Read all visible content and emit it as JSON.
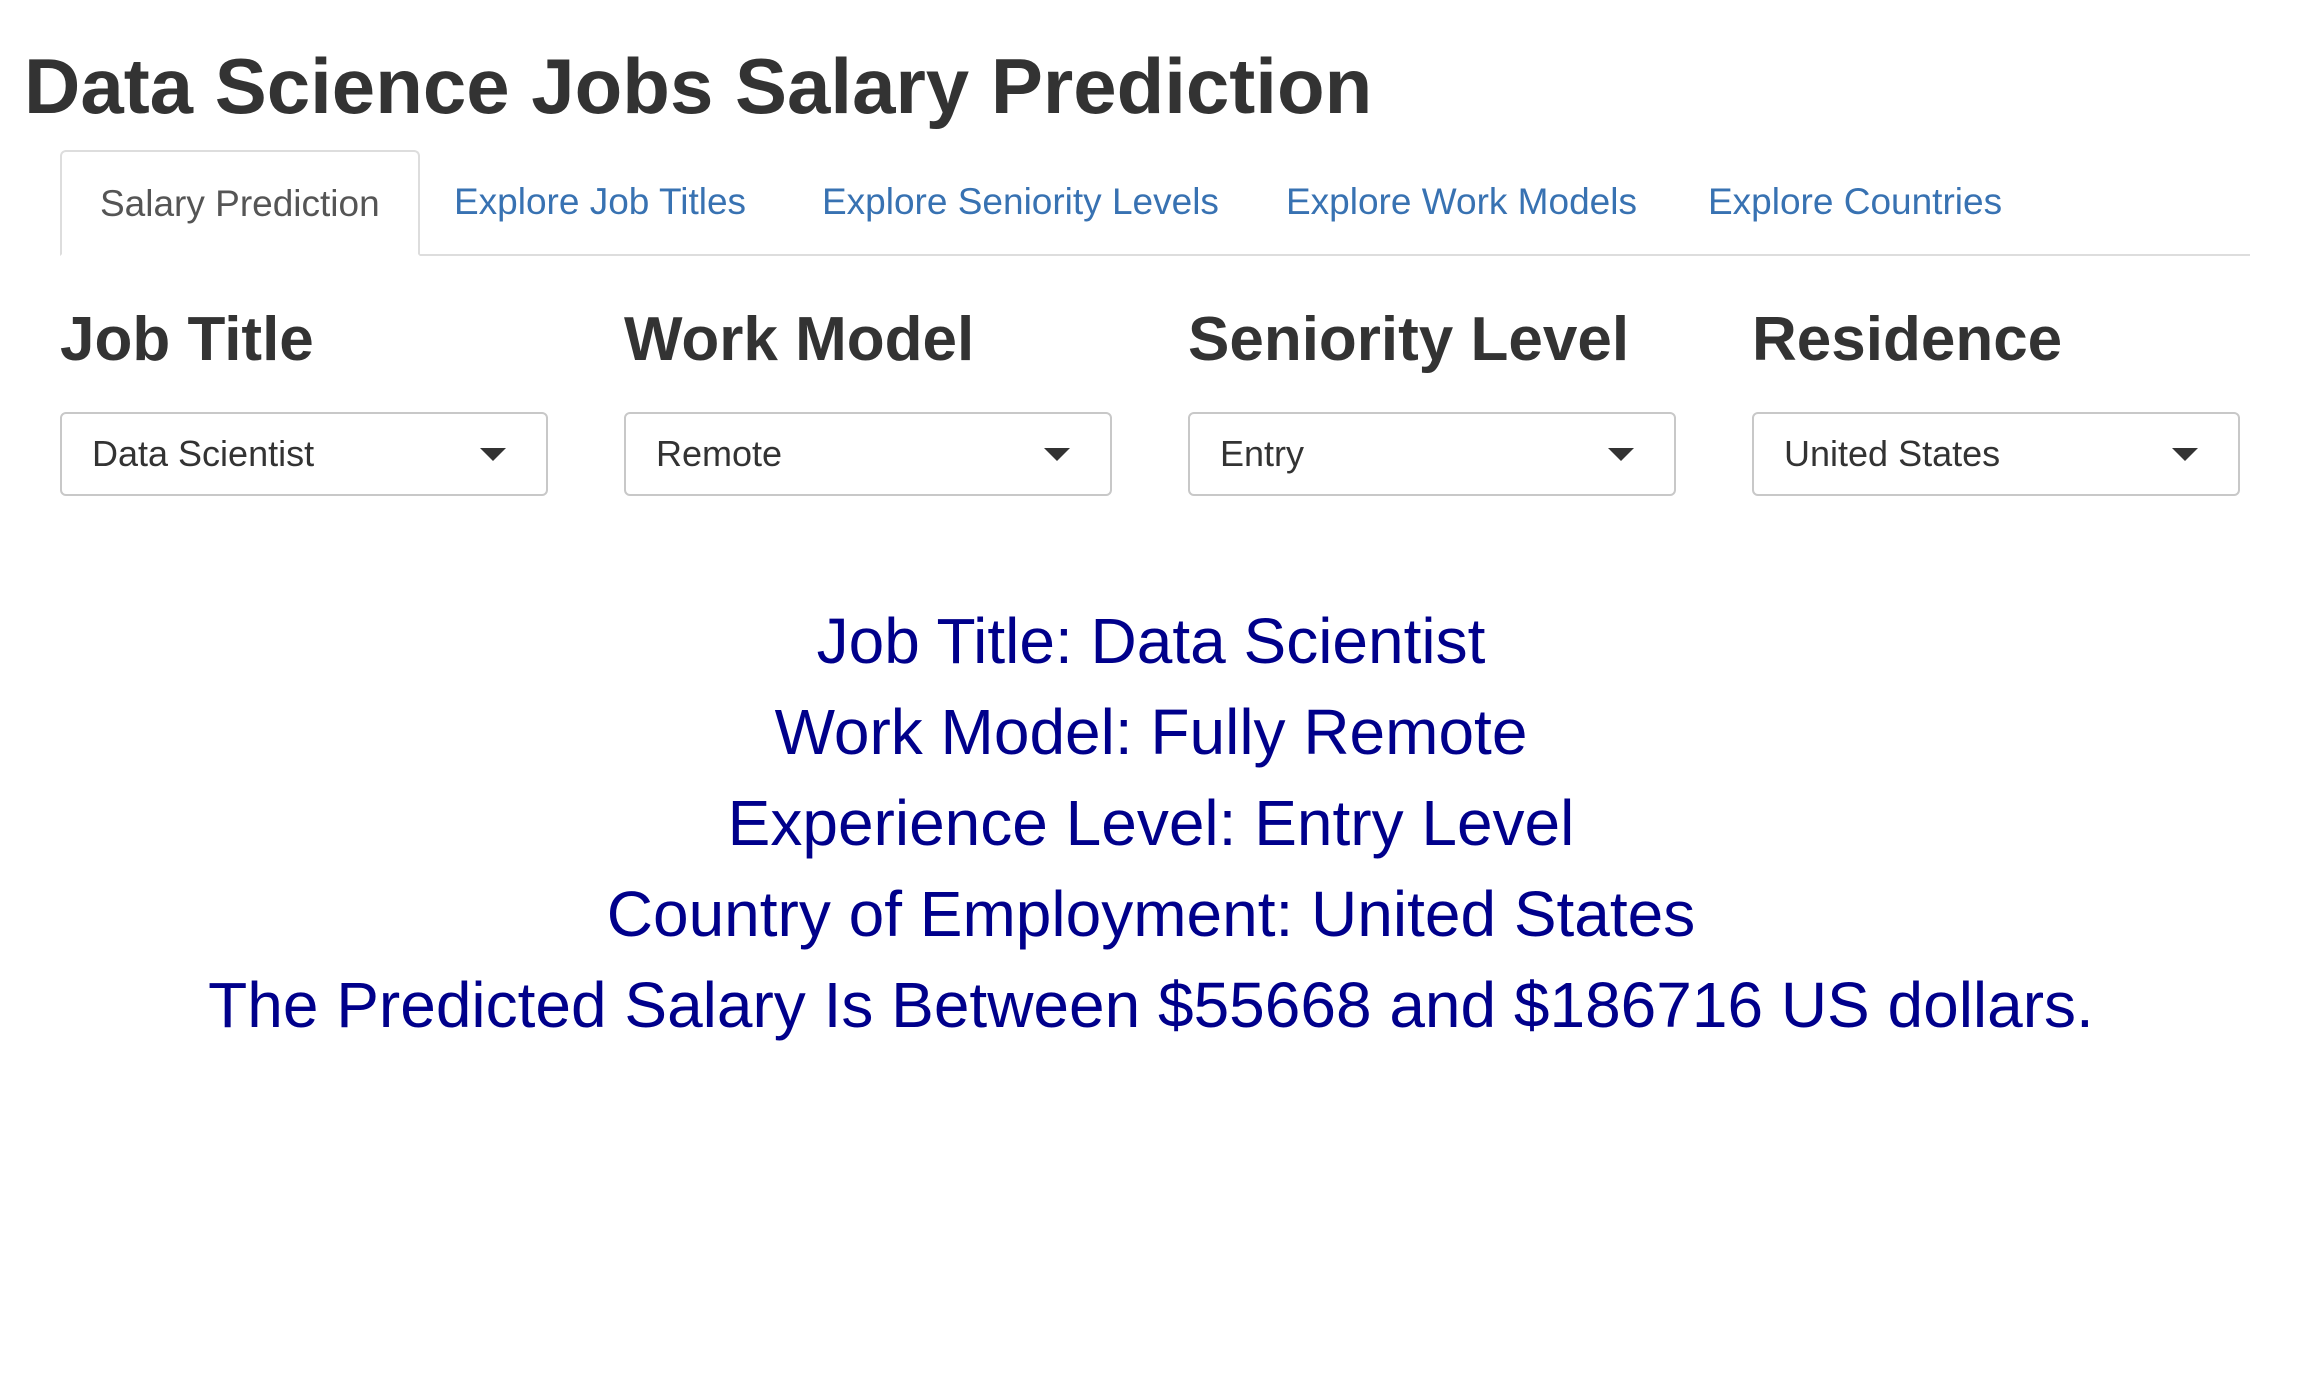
{
  "app": {
    "title": "Data Science Jobs Salary Prediction"
  },
  "tabs": [
    {
      "label": "Salary Prediction",
      "active": true
    },
    {
      "label": "Explore Job Titles",
      "active": false
    },
    {
      "label": "Explore Seniority Levels",
      "active": false
    },
    {
      "label": "Explore Work Models",
      "active": false
    },
    {
      "label": "Explore Countries",
      "active": false
    }
  ],
  "filters": {
    "job_title": {
      "label": "Job Title",
      "value": "Data Scientist"
    },
    "work_model": {
      "label": "Work Model",
      "value": "Remote"
    },
    "seniority_level": {
      "label": "Seniority Level",
      "value": "Entry"
    },
    "residence": {
      "label": "Residence",
      "value": "United States"
    }
  },
  "results": {
    "job_title_line": "Job Title: Data Scientist",
    "work_model_line": "Work Model: Fully Remote",
    "experience_line": "Experience Level: Entry Level",
    "country_line": "Country of Employment: United States",
    "salary_line": "The Predicted Salary Is Between $55668 and $186716 US dollars."
  },
  "colors": {
    "link": "#3872b2",
    "result_text": "#00008b",
    "heading": "#333333"
  }
}
